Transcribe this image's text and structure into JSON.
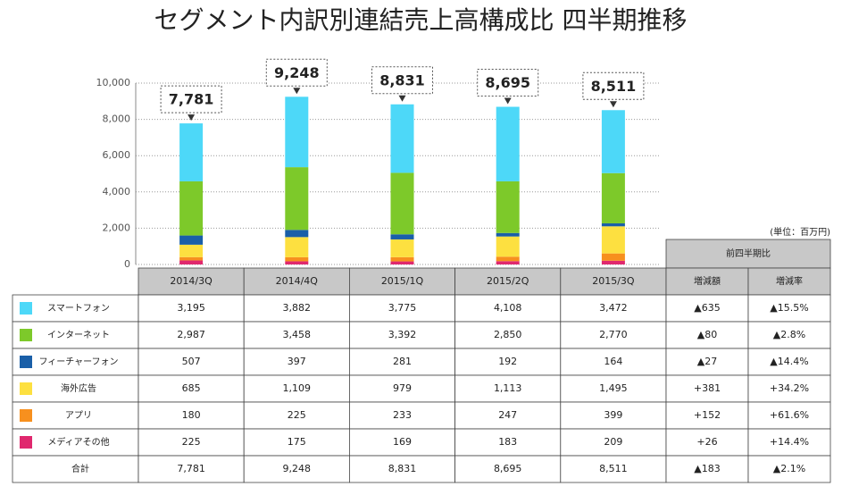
{
  "chart_data": {
    "type": "stacked_bar",
    "title": "セグメント内訳別連結売上高構成比 四半期推移",
    "unit": "(単位：百万円)",
    "categories": [
      "2014/3Q",
      "2014/4Q",
      "2015/1Q",
      "2015/2Q",
      "2015/3Q"
    ],
    "ylim": [
      0,
      10000
    ],
    "yticks": [
      0,
      {
        "value": 2000,
        "label": "2,000"
      },
      {
        "value": 4000,
        "label": "4,000"
      },
      {
        "value": 6000,
        "label": "6,000"
      },
      {
        "value": 8000,
        "label": "8,000"
      },
      {
        "value": 10000,
        "label": "10,000"
      }
    ],
    "grid": true,
    "series": [
      {
        "name": "スマートフォン",
        "color": "#4dd8f8",
        "values": [
          3195,
          3882,
          3775,
          4108,
          3472
        ],
        "value_labels": [
          "3,195",
          "3,882",
          "3,775",
          "4,108",
          "3,472"
        ],
        "change_amount": "▲635",
        "change_rate": "▲15.5%"
      },
      {
        "name": "インターネット",
        "color": "#7dc92a",
        "values": [
          2987,
          3458,
          3392,
          2850,
          2770
        ],
        "value_labels": [
          "2,987",
          "3,458",
          "3,392",
          "2,850",
          "2,770"
        ],
        "change_amount": "▲80",
        "change_rate": "▲2.8%"
      },
      {
        "name": "フィーチャーフォン",
        "color": "#1a5fa8",
        "values": [
          507,
          397,
          281,
          192,
          164
        ],
        "change_amount": "▲27",
        "change_rate": "▲14.4%"
      },
      {
        "name": "海外広告",
        "color": "#fde040",
        "values": [
          685,
          1109,
          979,
          1113,
          1495
        ],
        "value_labels": [
          "685",
          "1,109",
          "979",
          "1,113",
          "1,495"
        ],
        "change_amount": "+381",
        "change_rate": "+34.2%"
      },
      {
        "name": "アプリ",
        "color": "#f7901e",
        "values": [
          180,
          225,
          233,
          247,
          399
        ],
        "change_amount": "+152",
        "change_rate": "+61.6%"
      },
      {
        "name": "メディアその他",
        "color": "#e0286e",
        "values": [
          225,
          175,
          169,
          183,
          209
        ],
        "change_amount": "+26",
        "change_rate": "+14.4%"
      }
    ],
    "total_name": "合計",
    "totals": [
      7781,
      9248,
      8831,
      8695,
      8511
    ],
    "total_labels": [
      "7,781",
      "9,248",
      "8,831",
      "8,695",
      "8,511"
    ],
    "total_change_amount": "▲183",
    "total_change_rate": "▲2.1%",
    "change_header": "前四半期比",
    "change_columns": [
      "増減額",
      "増減率"
    ]
  }
}
